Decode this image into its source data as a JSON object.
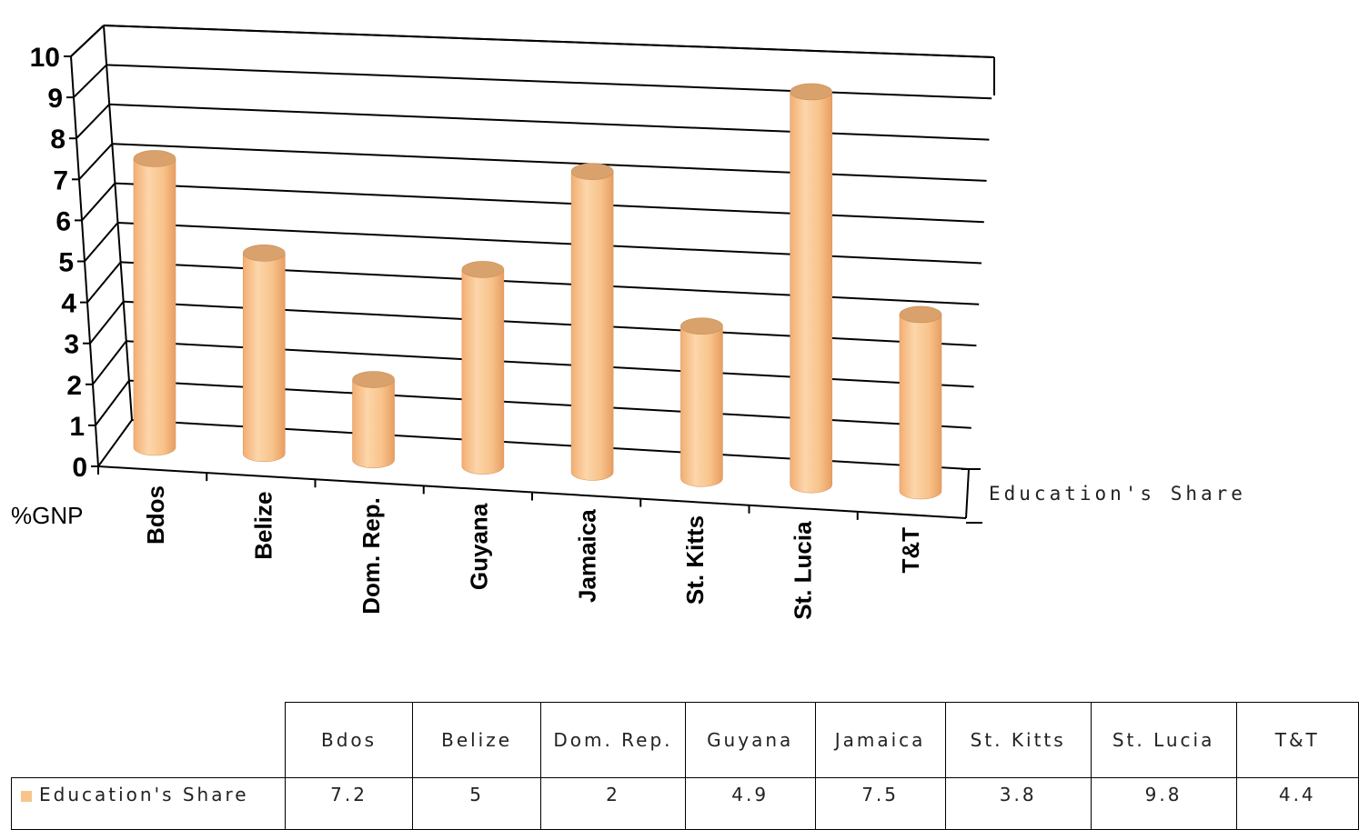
{
  "chart_data": {
    "type": "bar",
    "style": "3d-cylinder",
    "categories": [
      "Bdos",
      "Belize",
      "Dom. Rep.",
      "Guyana",
      "Jamaica",
      "St. Kitts",
      "St. Lucia",
      "T&T"
    ],
    "series": [
      {
        "name": "Education's Share",
        "values": [
          7.2,
          5,
          2,
          4.9,
          7.5,
          3.8,
          9.8,
          4.4
        ],
        "color": "#f9c48c"
      }
    ],
    "ylabel": "%GNP",
    "ylim": [
      0,
      10
    ],
    "yticks": [
      0,
      1,
      2,
      3,
      4,
      5,
      6,
      7,
      8,
      9,
      10
    ],
    "grid": true
  },
  "table": {
    "headers": [
      "Bdos",
      "Belize",
      "Dom. Rep.",
      "Guyana",
      "Jamaica",
      "St. Kitts",
      "St. Lucia",
      "T&T"
    ],
    "row_label": "Education's Share",
    "values": [
      "7.2",
      "5",
      "2",
      "4.9",
      "7.5",
      "3.8",
      "9.8",
      "4.4"
    ]
  }
}
